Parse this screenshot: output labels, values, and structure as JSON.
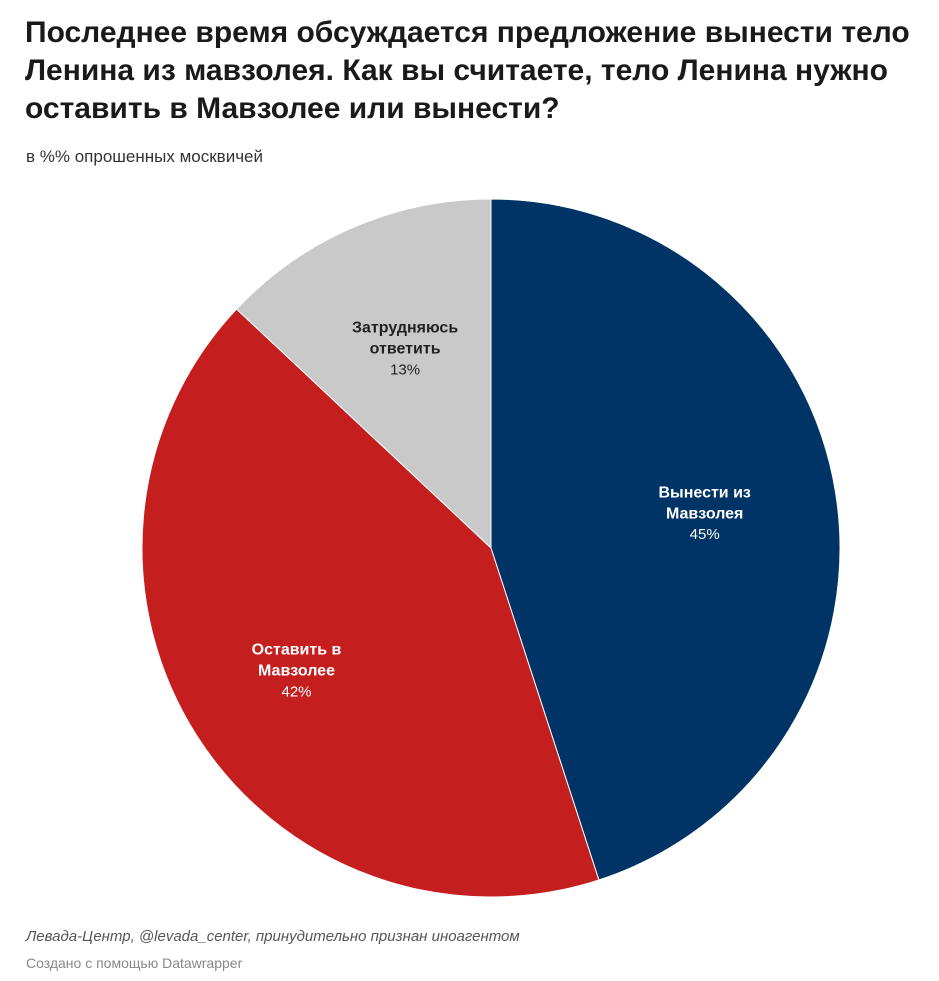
{
  "title": "Последнее время обсуждается предложение вынести тело Ленина из мавзолея. Как вы считаете, тело Ленина нужно оставить в Мавзолее или вынести?",
  "subtitle": "в %% опрошенных москвичей",
  "source": "Левада-Центр, @levada_center, принудительно признан иноагентом",
  "credit": "Создано с помощью Datawrapper",
  "chart_data": {
    "type": "pie",
    "unit": "%",
    "slices": [
      {
        "label_lines": [
          "Вынести из",
          "Мавзолея"
        ],
        "value": 45,
        "value_label": "45%",
        "color": "#003366",
        "text_color": "#ffffff"
      },
      {
        "label_lines": [
          "Оставить в",
          "Мавзолее"
        ],
        "value": 42,
        "value_label": "42%",
        "color": "#c41e1e",
        "text_color": "#ffffff"
      },
      {
        "label_lines": [
          "Затрудняюсь",
          "ответить"
        ],
        "value": 13,
        "value_label": "13%",
        "color": "#c9c9c9",
        "text_color": "#222222"
      }
    ]
  }
}
